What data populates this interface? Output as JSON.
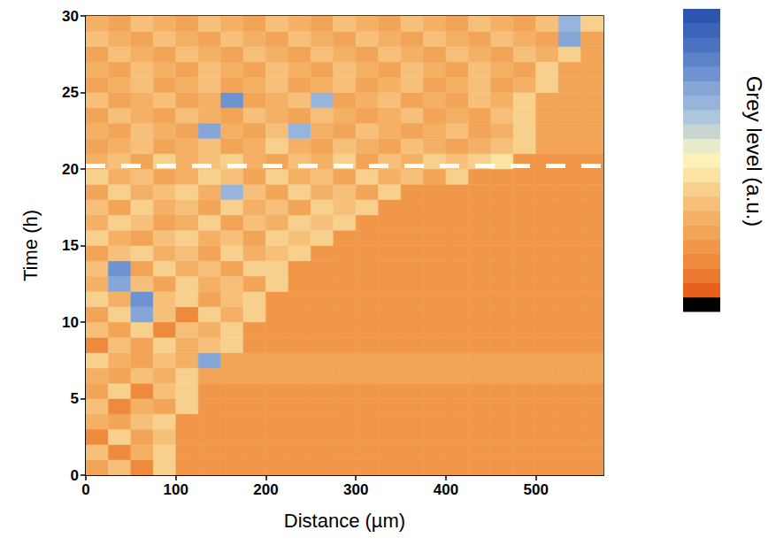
{
  "chart_data": {
    "type": "heatmap",
    "x_label": "Distance (µm)",
    "y_label": "Time (h)",
    "xlim": [
      0,
      575
    ],
    "xticks": [
      0,
      100,
      200,
      300,
      400,
      500
    ],
    "ylim": [
      0,
      30
    ],
    "yticks": [
      0,
      5,
      10,
      15,
      20,
      25,
      30
    ],
    "grid": false,
    "x_edges": [
      0,
      25,
      50,
      75,
      100,
      125,
      150,
      175,
      200,
      225,
      250,
      275,
      300,
      325,
      350,
      375,
      400,
      425,
      450,
      475,
      500,
      525,
      550,
      575
    ],
    "y_edges": [
      0,
      1,
      2,
      3,
      4,
      5,
      6,
      7,
      8,
      9,
      10,
      11,
      12,
      13,
      14,
      15,
      16,
      17,
      18,
      19,
      20,
      21,
      22,
      23,
      24,
      25,
      26,
      27,
      28,
      29,
      30
    ],
    "cells": [
      [
        5,
        7,
        3,
        8,
        4,
        4,
        4,
        4,
        4,
        4,
        4,
        4,
        4,
        4,
        4,
        4,
        4,
        4,
        4,
        4,
        4,
        4,
        4
      ],
      [
        7,
        3,
        6,
        8,
        4,
        4,
        4,
        4,
        4,
        4,
        4,
        4,
        4,
        4,
        4,
        4,
        4,
        4,
        4,
        4,
        4,
        4,
        4
      ],
      [
        3,
        8,
        5,
        7,
        4,
        4,
        4,
        4,
        4,
        4,
        4,
        4,
        4,
        4,
        4,
        4,
        4,
        4,
        4,
        4,
        4,
        4,
        4
      ],
      [
        6,
        5,
        7,
        8,
        4,
        4,
        4,
        4,
        4,
        4,
        4,
        4,
        4,
        4,
        4,
        4,
        4,
        4,
        4,
        4,
        4,
        4,
        4
      ],
      [
        7,
        3,
        6,
        5,
        8,
        4,
        4,
        4,
        4,
        4,
        4,
        4,
        4,
        4,
        4,
        4,
        4,
        4,
        4,
        4,
        4,
        4,
        4
      ],
      [
        5,
        8,
        3,
        7,
        8,
        4,
        4,
        4,
        4,
        4,
        4,
        4,
        4,
        4,
        4,
        4,
        4,
        4,
        4,
        4,
        4,
        4,
        4
      ],
      [
        6,
        5,
        7,
        6,
        8,
        5,
        5,
        5,
        5,
        5,
        5,
        5,
        5,
        5,
        5,
        5,
        5,
        5,
        5,
        5,
        5,
        5,
        5
      ],
      [
        8,
        6,
        5,
        7,
        6,
        15,
        5,
        5,
        5,
        5,
        5,
        5,
        5,
        5,
        5,
        5,
        5,
        5,
        5,
        5,
        5,
        5,
        5
      ],
      [
        3,
        7,
        5,
        8,
        6,
        7,
        8,
        4,
        4,
        4,
        4,
        4,
        4,
        4,
        4,
        4,
        4,
        4,
        4,
        4,
        4,
        4,
        4
      ],
      [
        7,
        5,
        8,
        3,
        7,
        6,
        8,
        4,
        4,
        4,
        4,
        4,
        4,
        4,
        4,
        4,
        4,
        4,
        4,
        4,
        4,
        4,
        4
      ],
      [
        5,
        8,
        15,
        7,
        3,
        8,
        6,
        8,
        4,
        4,
        4,
        4,
        4,
        4,
        4,
        4,
        4,
        4,
        4,
        4,
        4,
        4,
        4
      ],
      [
        8,
        6,
        16,
        7,
        8,
        5,
        7,
        8,
        4,
        4,
        4,
        4,
        4,
        4,
        4,
        4,
        4,
        4,
        4,
        4,
        4,
        4,
        4
      ],
      [
        6,
        15,
        7,
        5,
        8,
        6,
        7,
        5,
        8,
        4,
        4,
        4,
        4,
        4,
        4,
        4,
        4,
        4,
        4,
        4,
        4,
        4,
        4
      ],
      [
        7,
        16,
        5,
        8,
        6,
        7,
        5,
        8,
        8,
        4,
        4,
        4,
        4,
        4,
        4,
        4,
        4,
        4,
        4,
        4,
        4,
        4,
        4
      ],
      [
        5,
        7,
        8,
        6,
        7,
        5,
        8,
        6,
        7,
        8,
        4,
        4,
        4,
        4,
        4,
        4,
        4,
        4,
        4,
        4,
        4,
        4,
        4
      ],
      [
        8,
        6,
        5,
        7,
        8,
        6,
        7,
        5,
        8,
        7,
        8,
        4,
        4,
        4,
        4,
        4,
        4,
        4,
        4,
        4,
        4,
        4,
        4
      ],
      [
        6,
        8,
        7,
        5,
        6,
        8,
        5,
        7,
        6,
        8,
        7,
        8,
        4,
        4,
        4,
        4,
        4,
        4,
        4,
        4,
        4,
        4,
        4
      ],
      [
        7,
        5,
        8,
        6,
        7,
        5,
        8,
        6,
        7,
        5,
        8,
        7,
        8,
        4,
        4,
        4,
        4,
        4,
        4,
        4,
        4,
        4,
        4
      ],
      [
        5,
        8,
        6,
        7,
        8,
        6,
        14,
        7,
        5,
        8,
        6,
        7,
        5,
        8,
        4,
        4,
        4,
        4,
        4,
        4,
        4,
        4,
        4
      ],
      [
        8,
        6,
        7,
        5,
        6,
        8,
        7,
        5,
        8,
        6,
        7,
        5,
        8,
        6,
        7,
        5,
        8,
        4,
        4,
        4,
        4,
        4,
        4
      ],
      [
        6,
        7,
        5,
        8,
        6,
        7,
        8,
        6,
        5,
        7,
        6,
        8,
        5,
        7,
        6,
        8,
        7,
        8,
        9,
        4,
        4,
        4,
        4
      ],
      [
        5,
        6,
        7,
        5,
        6,
        7,
        5,
        6,
        8,
        6,
        5,
        7,
        6,
        5,
        7,
        6,
        5,
        6,
        7,
        8,
        5,
        5,
        5
      ],
      [
        6,
        5,
        7,
        6,
        5,
        15,
        6,
        5,
        7,
        14,
        6,
        5,
        7,
        6,
        5,
        6,
        7,
        5,
        6,
        8,
        5,
        5,
        5
      ],
      [
        5,
        7,
        6,
        5,
        7,
        6,
        5,
        7,
        6,
        5,
        7,
        6,
        5,
        6,
        7,
        5,
        6,
        5,
        7,
        8,
        5,
        5,
        5
      ],
      [
        7,
        5,
        6,
        7,
        5,
        6,
        16,
        5,
        6,
        7,
        14,
        5,
        6,
        7,
        5,
        6,
        5,
        7,
        6,
        8,
        5,
        5,
        5
      ],
      [
        5,
        6,
        7,
        5,
        6,
        7,
        5,
        6,
        7,
        5,
        6,
        7,
        5,
        6,
        7,
        5,
        6,
        7,
        5,
        6,
        8,
        5,
        5
      ],
      [
        6,
        5,
        7,
        6,
        5,
        7,
        6,
        5,
        7,
        6,
        5,
        7,
        6,
        5,
        7,
        6,
        5,
        7,
        6,
        5,
        8,
        5,
        5
      ],
      [
        5,
        7,
        6,
        5,
        7,
        6,
        5,
        7,
        6,
        5,
        7,
        6,
        5,
        7,
        6,
        5,
        7,
        6,
        5,
        7,
        6,
        8,
        5
      ],
      [
        7,
        6,
        5,
        7,
        6,
        5,
        7,
        6,
        5,
        7,
        6,
        5,
        7,
        6,
        5,
        7,
        6,
        5,
        7,
        6,
        5,
        15,
        5
      ],
      [
        6,
        5,
        7,
        6,
        5,
        7,
        6,
        5,
        7,
        6,
        5,
        7,
        6,
        5,
        7,
        6,
        5,
        7,
        6,
        5,
        7,
        14,
        8
      ]
    ],
    "colorbar": {
      "label": "Grey level (a.u.)",
      "range": [
        0,
        20
      ],
      "colors": [
        "#000000",
        "#e8601c",
        "#ec7a30",
        "#ee8a3c",
        "#f0974a",
        "#f2a457",
        "#f4b065",
        "#f6c07a",
        "#f8d08e",
        "#fbe3a3",
        "#fdf0b8",
        "#e8ebcc",
        "#c9d6cf",
        "#aec6dc",
        "#97b5dc",
        "#86a6d8",
        "#6f93d0",
        "#5c82c8",
        "#4a72c0",
        "#3c64b8",
        "#2e56b0"
      ]
    },
    "hlines": [
      {
        "y": 20.2,
        "color": "#ffffff",
        "line_style": "dashed"
      }
    ]
  }
}
